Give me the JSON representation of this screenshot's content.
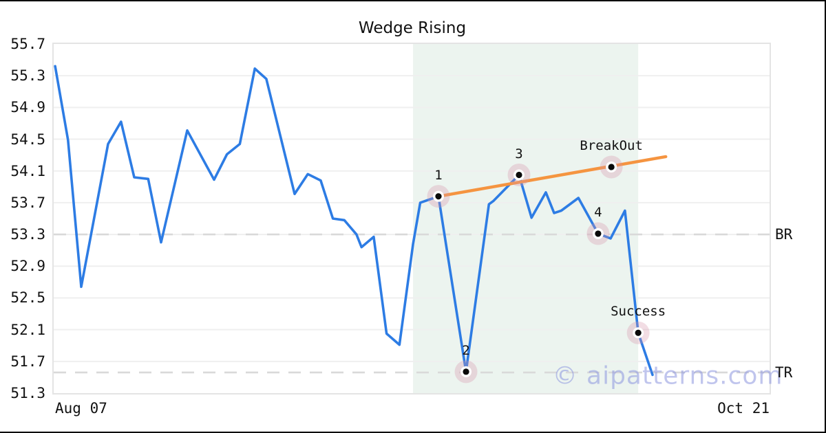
{
  "figure": {
    "watermark": "© aipatterns.com",
    "background": "#ffffff",
    "border_color": "#000000"
  },
  "chart_data": {
    "type": "line",
    "title": "Wedge Rising",
    "x_axis": {
      "start_label": "Aug 07",
      "end_label": "Oct 21"
    },
    "ylim": [
      51.3,
      55.7
    ],
    "ytick_labels": [
      "55.7",
      "55.3",
      "54.9",
      "54.5",
      "54.1",
      "53.7",
      "53.3",
      "52.9",
      "52.5",
      "52.1",
      "51.7",
      "51.3"
    ],
    "grid": "horizontal",
    "colors": {
      "price_line": "#2d7ce4",
      "trendline": "#f59440",
      "marker_halo": "rgba(214,150,170,0.32)",
      "marker_ring": "#ffffff",
      "marker_dot": "#0a0a0a",
      "region": "#ecf4ef",
      "dashed_line": "#d9d9d9",
      "gridline": "#efefef",
      "text": "#111111"
    },
    "series": [
      {
        "name": "price",
        "points": [
          [
            0.2,
            55.42
          ],
          [
            2.0,
            54.49
          ],
          [
            3.85,
            52.64
          ],
          [
            7.6,
            54.44
          ],
          [
            9.4,
            54.72
          ],
          [
            11.25,
            54.02
          ],
          [
            13.2,
            54.0
          ],
          [
            15.0,
            53.2
          ],
          [
            18.65,
            54.61
          ],
          [
            22.4,
            53.99
          ],
          [
            24.2,
            54.31
          ],
          [
            26.0,
            54.44
          ],
          [
            28.1,
            55.39
          ],
          [
            29.7,
            55.26
          ],
          [
            33.65,
            53.81
          ],
          [
            35.5,
            54.06
          ],
          [
            37.3,
            53.98
          ],
          [
            39.0,
            53.5
          ],
          [
            40.6,
            53.48
          ],
          [
            42.3,
            53.3
          ],
          [
            43.0,
            53.14
          ],
          [
            44.7,
            53.27
          ],
          [
            46.5,
            52.05
          ],
          [
            48.3,
            51.91
          ],
          [
            50.2,
            53.18
          ],
          [
            51.2,
            53.7
          ],
          [
            53.75,
            53.78
          ],
          [
            57.6,
            51.57
          ],
          [
            60.8,
            53.68
          ],
          [
            61.4,
            53.72
          ],
          [
            65.0,
            54.05
          ],
          [
            66.75,
            53.51
          ],
          [
            68.75,
            53.83
          ],
          [
            69.9,
            53.57
          ],
          [
            70.9,
            53.6
          ],
          [
            73.3,
            53.76
          ],
          [
            76.05,
            53.31
          ],
          [
            77.8,
            53.25
          ],
          [
            79.8,
            53.6
          ],
          [
            81.65,
            52.06
          ],
          [
            83.65,
            51.53
          ]
        ]
      }
    ],
    "trendline": {
      "x1_pct": 53.75,
      "value1": 53.78,
      "x2_pct": 85.5,
      "value2": 54.28
    },
    "pattern_region": {
      "x1_pct": 50.2,
      "x2_pct": 81.65
    },
    "hlines": [
      {
        "label": "BR",
        "value": 53.3
      },
      {
        "label": "TR",
        "value": 51.56
      }
    ],
    "annotations": [
      {
        "label": "1",
        "x_pct": 53.75,
        "value": 53.78
      },
      {
        "label": "2",
        "x_pct": 57.6,
        "value": 51.57
      },
      {
        "label": "3",
        "x_pct": 65.0,
        "value": 54.05
      },
      {
        "label": "4",
        "x_pct": 76.05,
        "value": 53.31
      },
      {
        "label": "BreakOut",
        "x_pct": 77.9,
        "value": 54.15
      },
      {
        "label": "Success",
        "x_pct": 81.65,
        "value": 52.06
      }
    ]
  }
}
